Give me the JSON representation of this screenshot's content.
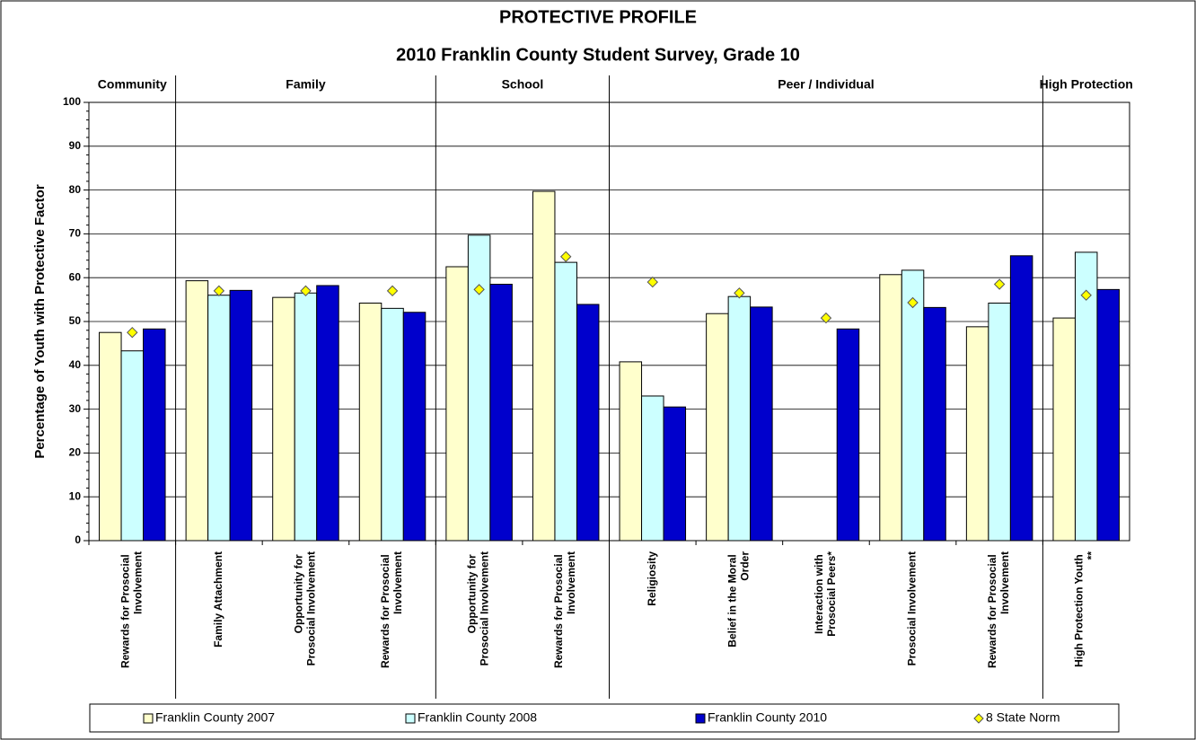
{
  "chart_data": {
    "type": "bar",
    "title": "PROTECTIVE PROFILE",
    "subtitle": "2010 Franklin County Student Survey, Grade 10",
    "y_label": "Percentage of Youth with Protective Factor",
    "groups": [
      "Community",
      "Family",
      "School",
      "Peer / Individual",
      "High Protection"
    ],
    "categories": [
      "Rewards for Prosocial Involvement",
      "Family Attachment",
      "Opportunity for Prosocial Involvement",
      "Rewards for Prosocial Involvement",
      "Opportunity for Prosocial Involvement",
      "Rewards for Prosocial Involvement",
      "Religiosity",
      "Belief in the Moral Order",
      "Interaction with Prosocial Peers*",
      "Prosocial Involvement",
      "Rewards for Prosocial Involvement",
      "High Protection Youth **"
    ],
    "series": [
      {
        "name": "Franklin County 2007",
        "color": "#ffffcc",
        "values": [
          47.5,
          59.3,
          55.5,
          54.2,
          62.5,
          79.7,
          40.8,
          51.8,
          null,
          60.7,
          48.8,
          50.8
        ]
      },
      {
        "name": "Franklin County 2008",
        "color": "#ccffff",
        "values": [
          43.3,
          56.0,
          56.5,
          53.0,
          69.7,
          63.5,
          33.0,
          55.7,
          null,
          61.7,
          54.2,
          65.8
        ]
      },
      {
        "name": "Franklin County 2010",
        "color": "#0000cc",
        "values": [
          48.3,
          57.1,
          58.2,
          52.1,
          58.5,
          53.9,
          30.5,
          53.3,
          48.3,
          53.2,
          65.0,
          57.3
        ]
      },
      {
        "name": "8 State Norm",
        "type": "marker",
        "color": "#ffff00",
        "values": [
          47.5,
          57.0,
          57.0,
          57.0,
          57.3,
          64.8,
          59.0,
          56.5,
          50.8,
          54.3,
          58.5,
          56.0
        ]
      }
    ],
    "ylim": [
      0,
      100
    ],
    "yticks": [
      0,
      10,
      20,
      30,
      40,
      50,
      60,
      70,
      80,
      90,
      100
    ],
    "grid": true,
    "legend": "bottom"
  }
}
